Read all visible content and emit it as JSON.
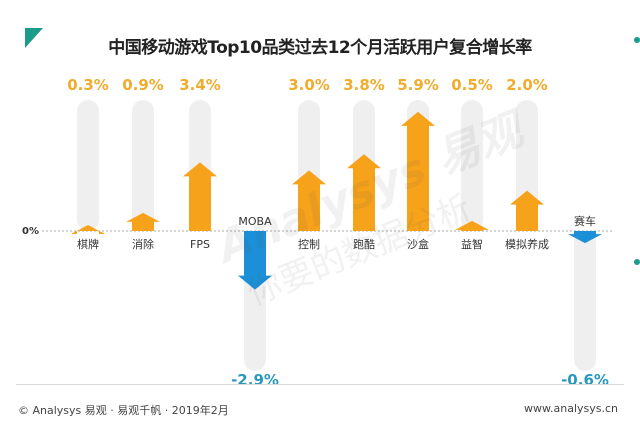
{
  "chart_data": {
    "type": "bar",
    "title": "中国移动游戏Top10品类过去12个月活跃用户复合增长率",
    "categories": [
      "棋牌",
      "消除",
      "FPS",
      "MOBA",
      "控制",
      "跑酷",
      "沙盒",
      "益智",
      "模拟养成",
      "赛车"
    ],
    "values": [
      0.3,
      0.9,
      3.4,
      -2.9,
      3.0,
      3.8,
      5.9,
      0.5,
      2.0,
      -0.6
    ],
    "value_labels": [
      "0.3%",
      "0.9%",
      "3.4%",
      "-2.9%",
      "3.0%",
      "3.8%",
      "5.9%",
      "0.5%",
      "2.0%",
      "-0.6%"
    ],
    "unit": "%",
    "zero_label": "0%",
    "ylim": [
      -3.5,
      6.5
    ],
    "grid": false,
    "legend": "none",
    "mark_style": "arrow",
    "colors": {
      "positive": "#f7a21b",
      "negative": "#1b90d8",
      "positive_label": "#f0ac2e",
      "negative_label": "#2a98bd",
      "track": "#efefef"
    }
  },
  "footer": {
    "source": "© Analysys 易观 · 易观千帆 · 2019年2月",
    "website": "www.analysys.cn"
  },
  "watermark": {
    "brand": "Analysys 易观",
    "slogan": "你要的数据分析"
  },
  "accent_color": "#1a9b8c"
}
